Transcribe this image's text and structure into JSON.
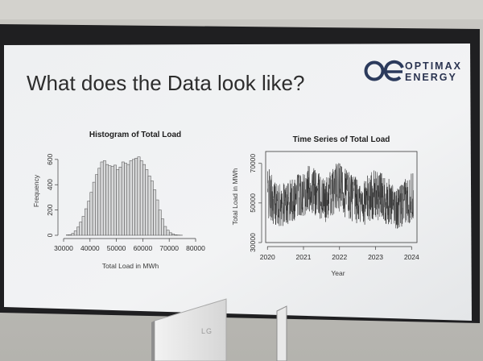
{
  "slide": {
    "title": "What does the Data look like?"
  },
  "logo": {
    "line1": "OPTIMAX",
    "line2": "ENERGY",
    "accent_color": "#2b3a5c"
  },
  "monitor": {
    "brand": "LG"
  },
  "chart_data": [
    {
      "type": "bar",
      "title": "Histogram of Total Load",
      "xlabel": "Total Load in MWh",
      "ylabel": "Frequency",
      "xlim": [
        30000,
        80000
      ],
      "ylim": [
        0,
        650
      ],
      "xticks": [
        30000,
        40000,
        50000,
        60000,
        70000,
        80000
      ],
      "yticks": [
        0,
        200,
        400,
        600
      ],
      "bin_start": 31000,
      "bin_width": 1000,
      "values": [
        3,
        5,
        15,
        35,
        65,
        105,
        150,
        210,
        270,
        340,
        420,
        480,
        530,
        580,
        590,
        560,
        550,
        545,
        555,
        520,
        540,
        580,
        570,
        560,
        590,
        600,
        610,
        620,
        590,
        560,
        520,
        470,
        430,
        360,
        280,
        200,
        130,
        70,
        40,
        20,
        10,
        4,
        2,
        1
      ]
    },
    {
      "type": "line",
      "title": "Time Series of Total Load",
      "xlabel": "Year",
      "ylabel": "Total Load in MWh",
      "xlim": [
        2019.95,
        2024.15
      ],
      "ylim": [
        30000,
        76000
      ],
      "xticks": [
        2020,
        2021,
        2022,
        2023,
        2024
      ],
      "yticks": [
        30000,
        50000,
        70000
      ],
      "series": [
        {
          "min_envelope": [
            [
              2020.0,
              38000
            ],
            [
              2020.3,
              35000
            ],
            [
              2020.6,
              36000
            ],
            [
              2020.9,
              40000
            ],
            [
              2021.2,
              41000
            ],
            [
              2021.6,
              37000
            ],
            [
              2021.9,
              42000
            ],
            [
              2022.2,
              39000
            ],
            [
              2022.6,
              35000
            ],
            [
              2022.9,
              38000
            ],
            [
              2023.2,
              37000
            ],
            [
              2023.6,
              34000
            ],
            [
              2023.9,
              36000
            ],
            [
              2024.05,
              37000
            ]
          ],
          "max_envelope": [
            [
              2020.0,
              72000
            ],
            [
              2020.3,
              62000
            ],
            [
              2020.6,
              64000
            ],
            [
              2020.9,
              71000
            ],
            [
              2021.2,
              73000
            ],
            [
              2021.6,
              65000
            ],
            [
              2021.9,
              74000
            ],
            [
              2022.2,
              72000
            ],
            [
              2022.6,
              63000
            ],
            [
              2022.9,
              70000
            ],
            [
              2023.2,
              69000
            ],
            [
              2023.6,
              60000
            ],
            [
              2023.9,
              67000
            ],
            [
              2024.05,
              70000
            ]
          ]
        }
      ]
    }
  ]
}
